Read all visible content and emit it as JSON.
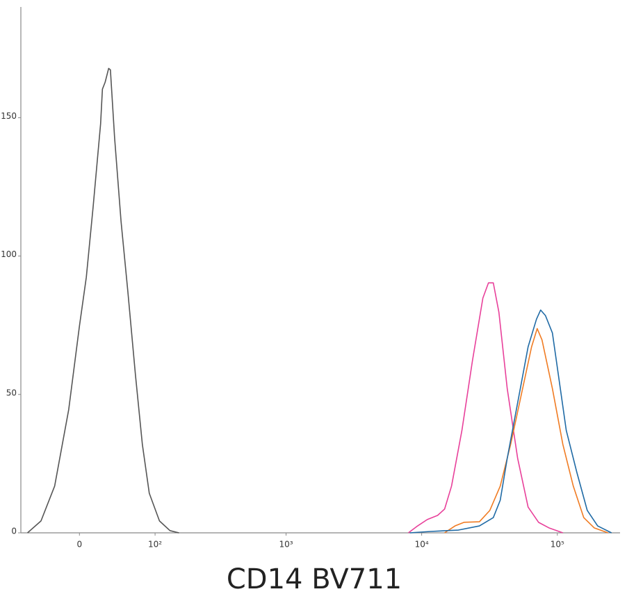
{
  "chart_data": {
    "type": "line",
    "xlabel": "CD14 BV711",
    "xscale": "asinh",
    "asinh_cofactor": 60,
    "xlim": [
      -70,
      290000
    ],
    "ylim": [
      0,
      190
    ],
    "xticks": [
      0,
      {
        "value": 100,
        "label": "10²"
      },
      {
        "value": 1000,
        "label": "10³"
      },
      {
        "value": 10000,
        "label": "10⁴"
      },
      {
        "value": 100000,
        "label": "10⁵"
      }
    ],
    "yticks": [
      0,
      50,
      100,
      150
    ],
    "series": [
      {
        "color": "#555555",
        "x": [
          -60,
          -42,
          -26,
          -11,
          0,
          7,
          14,
          22,
          24,
          27,
          31,
          33,
          38,
          46,
          55,
          66,
          77,
          89,
          109,
          133,
          157
        ],
        "values": [
          0,
          4.3,
          16.9,
          44.5,
          74.7,
          92.3,
          117.5,
          147.7,
          160.3,
          162.8,
          167.8,
          167.3,
          142.6,
          112.5,
          87.3,
          57.1,
          31.9,
          14.3,
          4.3,
          0.8,
          0
        ]
      },
      {
        "color": "#e8409a",
        "x": [
          7980,
          9210,
          10990,
          13110,
          14760,
          16600,
          19800,
          23660,
          28260,
          31060,
          33740,
          37090,
          42730,
          51000,
          60900,
          72700,
          86700,
          109800
        ],
        "values": [
          0,
          2.3,
          4.8,
          6.3,
          8.6,
          16.9,
          37.0,
          62.1,
          84.8,
          90.3,
          90.3,
          79.7,
          52.1,
          26.9,
          9.3,
          3.8,
          1.8,
          0
        ]
      },
      {
        "color": "#f07b22",
        "x": [
          14760,
          17610,
          20520,
          26640,
          31800,
          37950,
          45300,
          54090,
          64590,
          71040,
          77100,
          92000,
          109800,
          131100,
          156600,
          186900,
          236400
        ],
        "values": [
          0,
          2.5,
          3.8,
          4.0,
          8.1,
          16.9,
          32.0,
          49.6,
          67.2,
          73.8,
          69.7,
          52.1,
          32.0,
          16.9,
          5.5,
          1.8,
          0
        ]
      },
      {
        "color": "#1f6aa5",
        "x": [
          8180,
          11640,
          18660,
          26640,
          33740,
          37950,
          42730,
          51000,
          60900,
          70200,
          75300,
          81750,
          92000,
          103500,
          116400,
          139200,
          166200,
          198300,
          250800
        ],
        "values": [
          0,
          0.5,
          1.0,
          2.5,
          5.5,
          11.8,
          26.9,
          47.0,
          67.2,
          77.2,
          80.5,
          78.5,
          72.2,
          54.6,
          37.0,
          21.9,
          8.1,
          2.5,
          0
        ]
      }
    ]
  }
}
